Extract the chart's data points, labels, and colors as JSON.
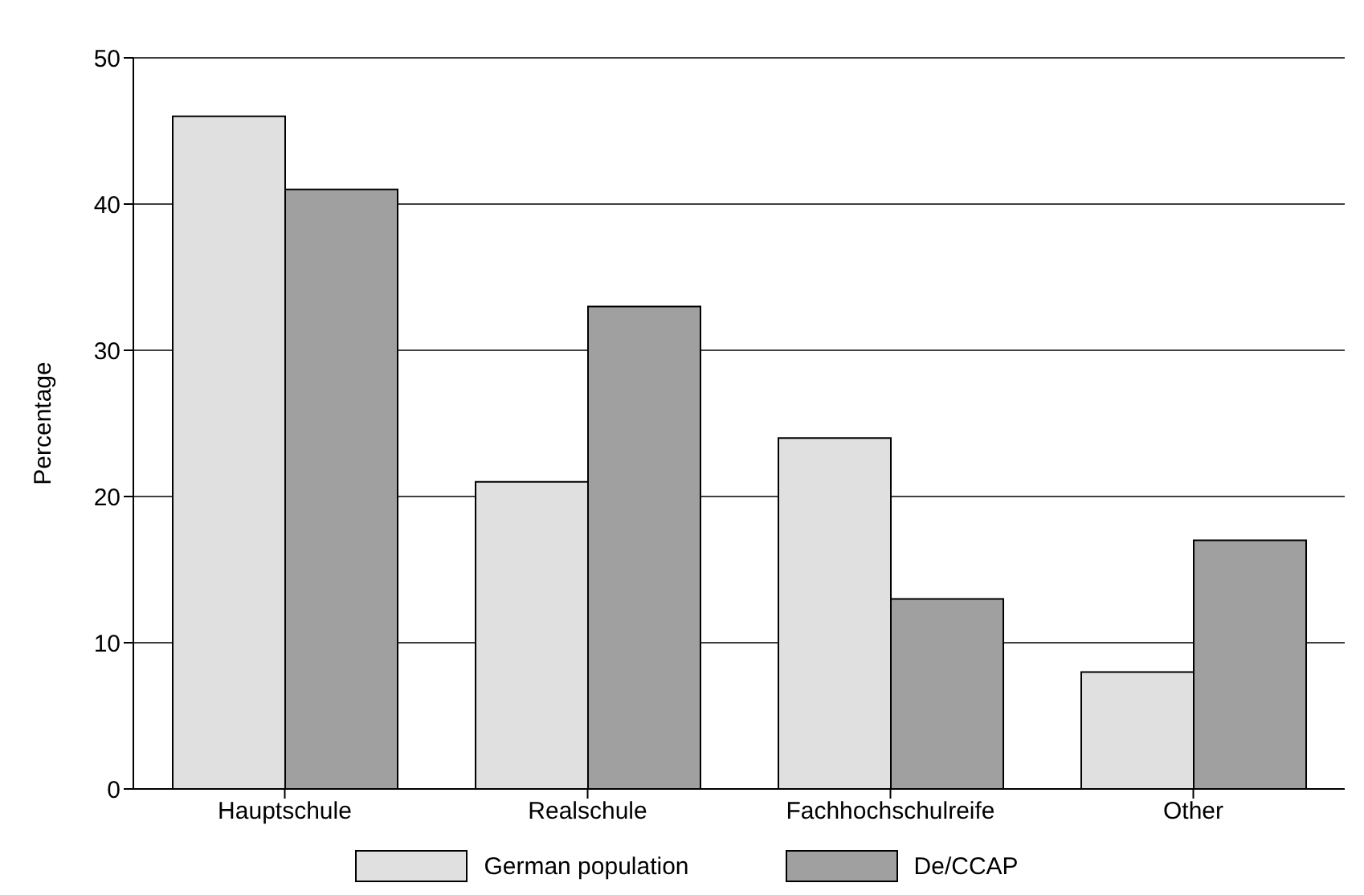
{
  "chart_data": {
    "type": "bar",
    "ylabel": "Percentage",
    "categories": [
      "Hauptschule",
      "Realschule",
      "Fachhochschulreife",
      "Other"
    ],
    "series": [
      {
        "name": "German population",
        "color": "#e0e0e0",
        "values": [
          46,
          21,
          24,
          8
        ]
      },
      {
        "name": "De/CCAP",
        "color": "#a0a0a0",
        "values": [
          41,
          33,
          13,
          17
        ]
      }
    ],
    "ylim": [
      0,
      50
    ],
    "yticks": [
      0,
      10,
      20,
      30,
      40,
      50
    ],
    "grid": "y",
    "legend": "bottom"
  }
}
